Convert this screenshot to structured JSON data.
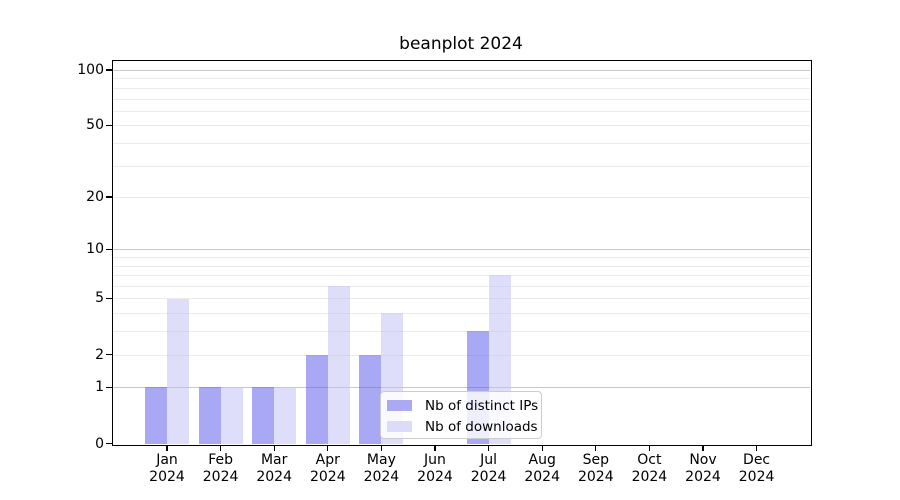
{
  "chart_data": {
    "type": "bar",
    "title": "beanplot 2024",
    "categories": [
      "Jan",
      "Feb",
      "Mar",
      "Apr",
      "May",
      "Jun",
      "Jul",
      "Aug",
      "Sep",
      "Oct",
      "Nov",
      "Dec"
    ],
    "x_tick_year": "2024",
    "series": [
      {
        "name": "Nb of distinct IPs",
        "values": [
          1,
          1,
          1,
          2,
          2,
          0,
          3,
          0,
          0,
          0,
          0,
          0
        ],
        "color": "rgba(82,82,235,0.5)",
        "legend_color": "#a9a9f4"
      },
      {
        "name": "Nb of downloads",
        "values": [
          5,
          1,
          1,
          6,
          4,
          0,
          7,
          0,
          0,
          0,
          0,
          0
        ],
        "color": "rgba(190,190,247,0.5)",
        "legend_color": "#dcdcfa"
      }
    ],
    "yscale": "log1p",
    "ylim": [
      0,
      112
    ],
    "y_ticks": [
      0,
      1,
      2,
      5,
      10,
      20,
      50,
      100
    ],
    "y_major_gridlines": [
      1,
      10,
      100
    ],
    "y_minor_gridlines": [
      2,
      3,
      4,
      5,
      6,
      7,
      8,
      9,
      20,
      30,
      40,
      50,
      60,
      70,
      80,
      90
    ],
    "grid": "horizontal",
    "legend_position": "lower center"
  },
  "colors": {
    "background": "#ffffff",
    "axis": "#000000",
    "grid_major": "#c8c8c8",
    "grid_minor": "#ebebeb",
    "legend_border": "#cccccc"
  }
}
